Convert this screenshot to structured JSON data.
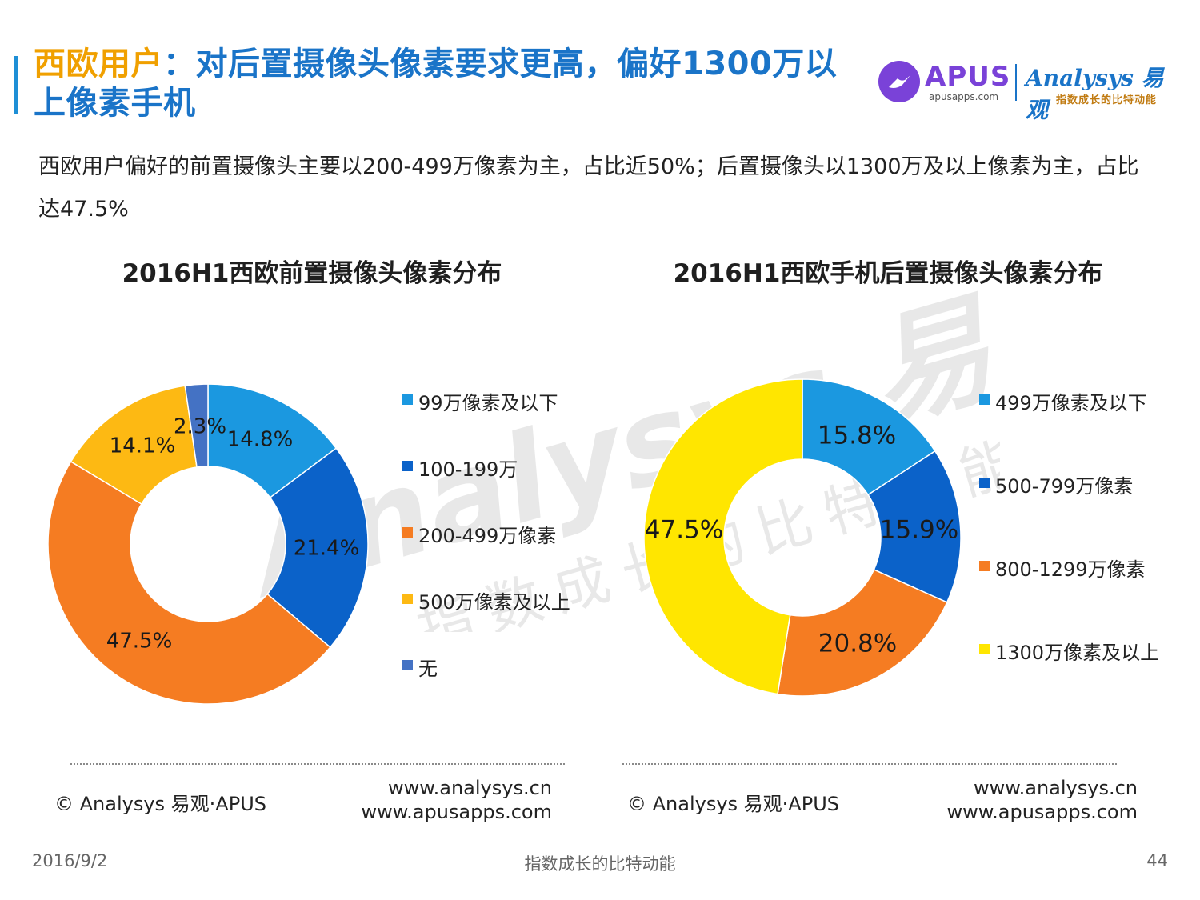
{
  "header": {
    "title_highlight": "西欧用户",
    "title_main": "：对后置摄像头像素要求更高，偏好1300万以上像素手机",
    "logo": {
      "apus": "APUS",
      "apus_sub": "apusapps.com",
      "analysys": "Analysys 易观",
      "analysys_sub": "指数成长的比特动能"
    }
  },
  "description": "西欧用户偏好的前置摄像头主要以200-499万像素为主，占比近50%；后置摄像头以1300万及以上像素为主，占比达47.5%",
  "watermark": {
    "main": "Analysys 易观",
    "sub": "指数成长的比特动能"
  },
  "chart_data": [
    {
      "type": "pie",
      "title": "2016H1西欧前置摄像头像素分布",
      "categories": [
        "99万像素及以下",
        "100-199万",
        "200-499万像素",
        "500万像素及以上",
        "无"
      ],
      "values": [
        14.8,
        21.4,
        47.5,
        14.1,
        2.3
      ],
      "labels": [
        "14.8%",
        "21.4%",
        "47.5%",
        "14.1%",
        "2.3%"
      ],
      "colors": [
        "#1b98e0",
        "#0b62c9",
        "#f57c22",
        "#fdb913",
        "#4472c4"
      ],
      "donut": true,
      "legend_position": "right"
    },
    {
      "type": "pie",
      "title": "2016H1西欧手机后置摄像头像素分布",
      "categories": [
        "499万像素及以下",
        "500-799万像素",
        "800-1299万像素",
        "1300万像素及以上"
      ],
      "values": [
        15.8,
        15.9,
        20.8,
        47.5
      ],
      "labels": [
        "15.8%",
        "15.9%",
        "20.8%",
        "47.5%"
      ],
      "colors": [
        "#1b98e0",
        "#0b62c9",
        "#f57c22",
        "#ffe600"
      ],
      "donut": true,
      "legend_position": "right"
    }
  ],
  "footer": {
    "left": {
      "copyright": "© Analysys 易观·APUS",
      "url1": "www.analysys.cn",
      "url2": "www.apusapps.com"
    },
    "right": {
      "copyright": "© Analysys 易观·APUS",
      "url1": "www.analysys.cn",
      "url2": "www.apusapps.com"
    }
  },
  "bottom": {
    "date": "2016/9/2",
    "slogan": "指数成长的比特动能",
    "page": "44"
  }
}
